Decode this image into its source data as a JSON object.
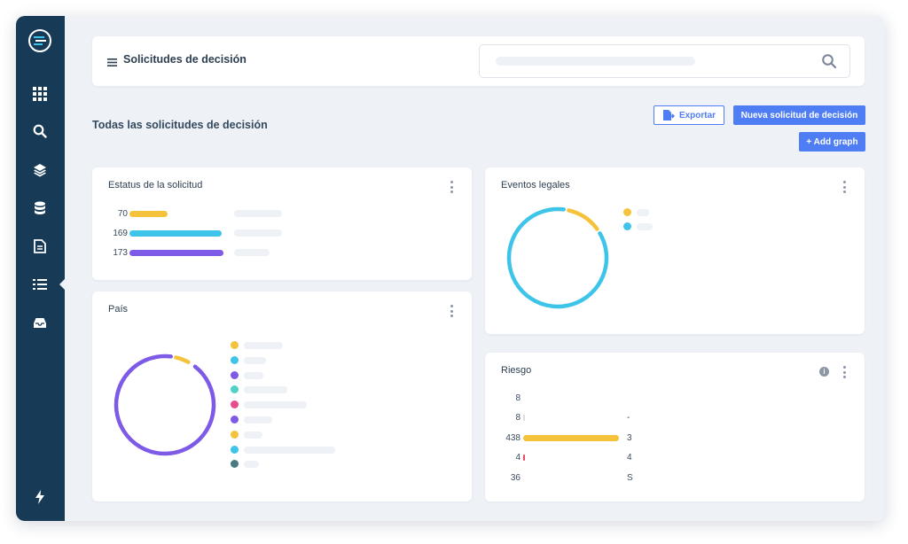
{
  "sidebar": {
    "items": [
      {
        "icon": "grid-icon"
      },
      {
        "icon": "search-icon"
      },
      {
        "icon": "layers-icon"
      },
      {
        "icon": "database-icon"
      },
      {
        "icon": "document-icon"
      },
      {
        "icon": "checklist-icon",
        "active": true
      },
      {
        "icon": "inbox-icon"
      }
    ],
    "bottom_icon": "lightning-icon",
    "logo_icon": "logo-icon"
  },
  "header": {
    "title": "Solicitudes de decisión",
    "menu_icon": "hamburger-icon",
    "search_icon": "search-icon"
  },
  "page": {
    "title": "Todas las solicitudes de decisión",
    "export_label": "Exportar",
    "new_label": "Nueva solicitud de decisión",
    "add_graph_label": "+ Add graph"
  },
  "colors": {
    "sidebar": "#173b57",
    "accent": "#4f7df3",
    "yellow": "#f5c33b",
    "cyan": "#3ec4e8",
    "purple": "#7d5be6",
    "teal": "#4fd1c5",
    "pink": "#e84a8a",
    "slate": "#4a7a84",
    "red": "#e84a5f"
  },
  "cards": {
    "status": {
      "title": "Estatus de la solicitud",
      "rows": [
        {
          "value": "70",
          "fraction": 0.41,
          "color": "#f5c33b"
        },
        {
          "value": "169",
          "fraction": 1.0,
          "color": "#3ec4e8"
        },
        {
          "value": "173",
          "fraction": 1.02,
          "color": "#7d5be6"
        }
      ]
    },
    "events": {
      "title": "Eventos legales",
      "slices": [
        {
          "color": "#f5c33b",
          "share": 0.13
        },
        {
          "color": "#3ec4e8",
          "share": 0.87
        }
      ]
    },
    "country": {
      "title": "País",
      "slices": [
        {
          "color": "#f5c33b",
          "share": 0.06
        },
        {
          "color": "#3ec4e8",
          "share": 0.01
        },
        {
          "color": "#7d5be6",
          "share": 0.93
        }
      ],
      "legend_colors": [
        "#f5c33b",
        "#3ec4e8",
        "#7d5be6",
        "#4fd1c5",
        "#e84a8a",
        "#7d5be6",
        "#f5c33b",
        "#3ec4e8",
        "#4a7a84"
      ]
    },
    "risk": {
      "title": "Riesgo",
      "rows": [
        {
          "value": "8",
          "side": "",
          "fraction": 0.0,
          "color": "#f5c33b"
        },
        {
          "value": "8",
          "side": "-",
          "fraction": 0.01,
          "color": "#dddddd"
        },
        {
          "value": "438",
          "side": "3",
          "fraction": 1.0,
          "color": "#f5c33b"
        },
        {
          "value": "4",
          "side": "4",
          "fraction": 0.02,
          "color": "#e84a5f"
        },
        {
          "value": "36",
          "side": "S",
          "fraction": 0.0,
          "color": "#f5c33b"
        }
      ]
    }
  }
}
